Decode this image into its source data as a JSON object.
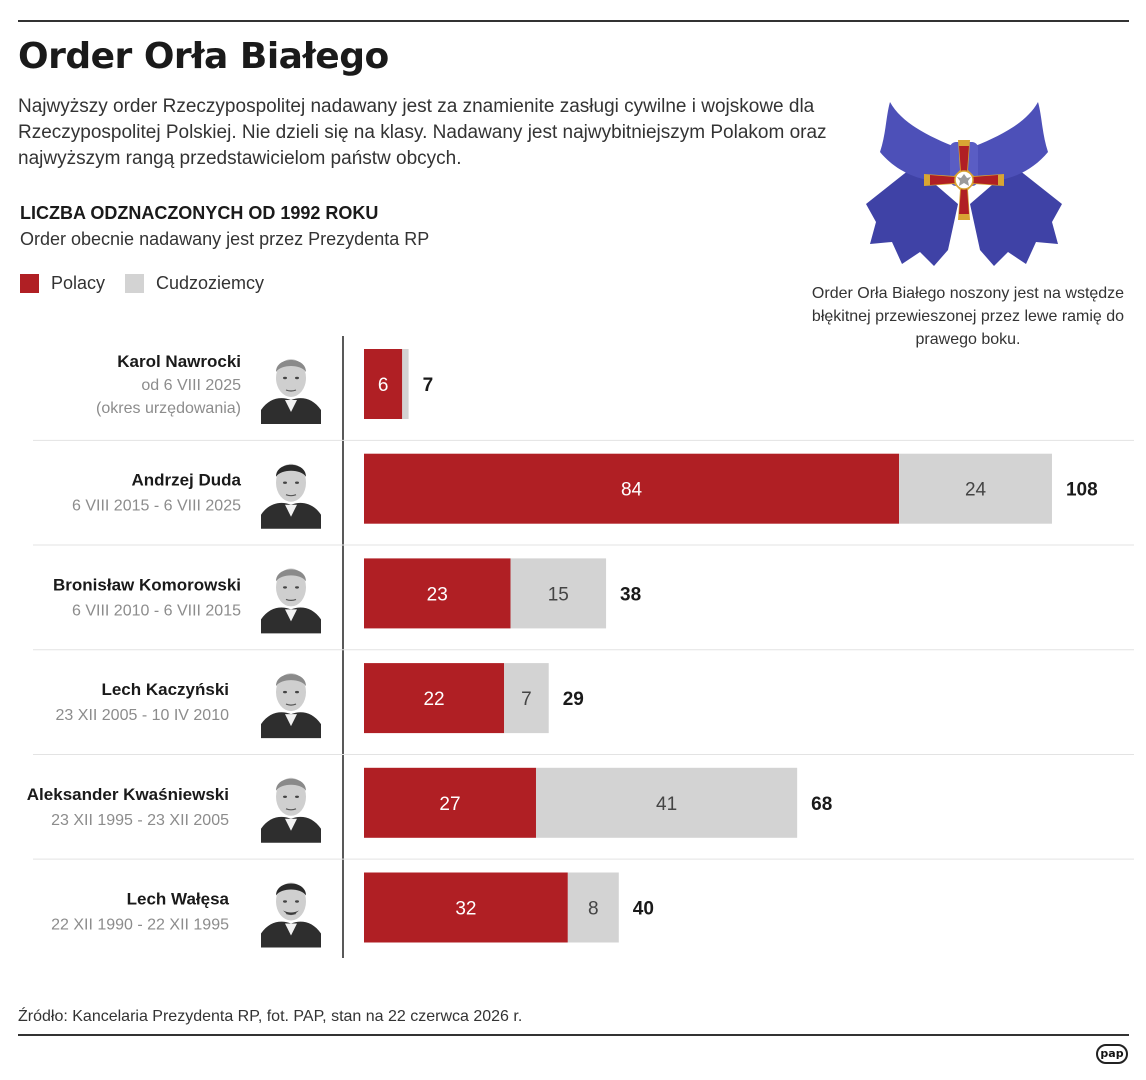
{
  "title": "Order Orła Białego",
  "intro": "Najwyższy order Rzeczypospolitej nadawany jest za znamienite zasługi cywilne i wojskowe dla Rzeczypospolitej Polskiej. Nie dzieli się na klasy. Nadawany jest najwybitniejszym Polakom oraz najwyższym rangą przedstawicielom państw obcych.",
  "section": {
    "title": "LICZBA ODZNACZONYCH OD 1992 ROKU",
    "subtitle": "Order obecnie nadawany jest przez Prezydenta RP"
  },
  "legend": [
    {
      "label": "Polacy",
      "color": "#b01f24"
    },
    {
      "label": "Cudzoziemcy",
      "color": "#d3d3d3"
    }
  ],
  "badge_caption": "Order Orła Białego noszony jest na wstędze błękitnej przewieszonej przez lewe ramię do prawego boku.",
  "source": "Źródło: Kancelaria Prezydenta RP, fot. PAP, stan na 22 czerwca 2026 r.",
  "logo_text": "pap",
  "colors": {
    "polacy": "#b01f24",
    "cudzoziemcy": "#d3d3d3",
    "ribbon": "#4a4db3",
    "cross": "#b01f24",
    "gold": "#d8a533"
  },
  "chart_data": {
    "type": "bar",
    "orientation": "horizontal",
    "stacked": true,
    "categories": [
      {
        "name": "Karol Nawrocki",
        "term": "od 6 VIII 2025",
        "note": "(okres urzędowania)"
      },
      {
        "name": "Andrzej Duda",
        "term": "6 VIII 2015 - 6 VIII 2025"
      },
      {
        "name": "Bronisław Komorowski",
        "term": "6 VIII 2010 - 6 VIII 2015"
      },
      {
        "name": "Lech Kaczyński",
        "term": "23 XII 2005 - 10 IV 2010"
      },
      {
        "name": "Aleksander Kwaśniewski",
        "term": "23 XII 1995 - 23 XII 2005"
      },
      {
        "name": "Lech Wałęsa",
        "term": "22 XII 1990 - 22 XII 1995"
      }
    ],
    "series": [
      {
        "name": "Polacy",
        "values": [
          6,
          84,
          23,
          22,
          27,
          32
        ]
      },
      {
        "name": "Cudzoziemcy",
        "values": [
          1,
          24,
          15,
          7,
          41,
          8
        ]
      }
    ],
    "totals": [
      7,
      108,
      38,
      29,
      68,
      40
    ],
    "xlim": [
      0,
      108
    ],
    "legend_position": "top-left"
  }
}
